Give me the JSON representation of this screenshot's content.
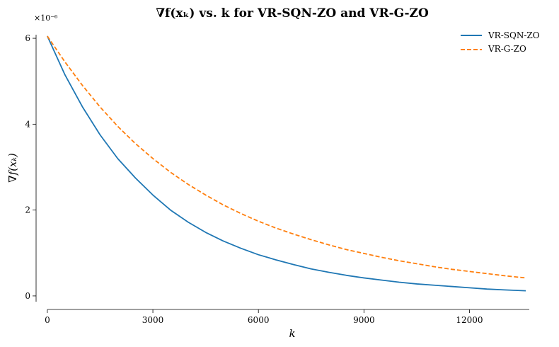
{
  "chart_data": {
    "type": "line",
    "title": "∇f(xₖ) vs. k for VR-SQN-ZO and VR-G-ZO",
    "xlabel": "k",
    "ylabel": "∇f(xₖ)",
    "y_scale_label": "×10⁻⁶",
    "xlim": [
      -300,
      13700
    ],
    "ylim": [
      -0.15,
      6.1
    ],
    "xticks": [
      0,
      3000,
      6000,
      9000,
      12000
    ],
    "xtick_labels": [
      "0",
      "3000",
      "6000",
      "9000",
      "12000"
    ],
    "yticks": [
      0,
      2,
      4,
      6
    ],
    "ytick_labels": [
      "0",
      "2",
      "4",
      "6"
    ],
    "grid": false,
    "legend_position": "top-right",
    "x": [
      0,
      500,
      1000,
      1500,
      2000,
      2500,
      3000,
      3500,
      4000,
      4500,
      5000,
      5500,
      6000,
      6500,
      7000,
      7500,
      8000,
      8500,
      9000,
      9500,
      10000,
      10500,
      11000,
      11500,
      12000,
      12500,
      13000,
      13600
    ],
    "series": [
      {
        "name": "VR-SQN-ZO",
        "color": "#1f77b4",
        "style": "solid",
        "values": [
          6.05,
          5.15,
          4.4,
          3.75,
          3.2,
          2.75,
          2.35,
          2.0,
          1.72,
          1.48,
          1.28,
          1.11,
          0.96,
          0.84,
          0.73,
          0.63,
          0.55,
          0.48,
          0.42,
          0.37,
          0.32,
          0.28,
          0.25,
          0.22,
          0.19,
          0.16,
          0.14,
          0.12
        ]
      },
      {
        "name": "VR-G-ZO",
        "color": "#ff7f0e",
        "style": "dashed",
        "values": [
          6.05,
          5.45,
          4.9,
          4.4,
          3.95,
          3.55,
          3.2,
          2.88,
          2.6,
          2.35,
          2.12,
          1.92,
          1.74,
          1.58,
          1.44,
          1.31,
          1.19,
          1.08,
          0.99,
          0.9,
          0.82,
          0.75,
          0.68,
          0.62,
          0.57,
          0.52,
          0.47,
          0.42
        ]
      }
    ]
  }
}
